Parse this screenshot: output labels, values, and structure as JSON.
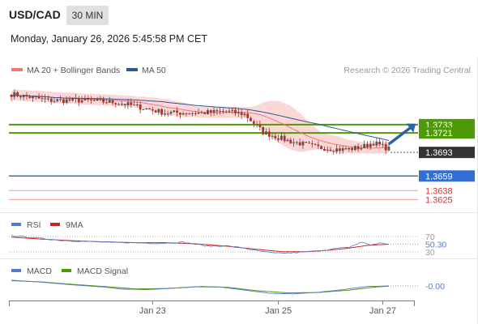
{
  "header": {
    "symbol": "USD/CAD",
    "timeframe": "30 MIN",
    "datetime": "Monday, January 26, 2026 5:45:58 PM CET"
  },
  "colors": {
    "candle_up": "#555555",
    "candle_down": "#b0302a",
    "ma20": "#f07878",
    "bollinger_fill": "#fbd3d3",
    "ma50": "#2c5896",
    "resistance": "#4e9a06",
    "support": "#2f6fd6",
    "support_light": "#f29a9a",
    "current_price": "#333333",
    "arrow": "#2a63aa",
    "rsi": "#5577cc",
    "rsi_ma": "#cc2222",
    "macd": "#5577cc",
    "macd_signal": "#4e9a06"
  },
  "chart_data": [
    {
      "type": "candlestick",
      "panel": "price",
      "legend": [
        {
          "label": "MA 20 + Bollinger Bands",
          "color": "#f07878"
        },
        {
          "label": "MA 50",
          "color": "#2c5896"
        }
      ],
      "watermark": "Research © 2026 Trading Central",
      "ylim": [
        1.3615,
        1.379
      ],
      "x_ticks": [
        {
          "label": "Jan 23",
          "index": 46
        },
        {
          "label": "Jan 25",
          "index": 87
        },
        {
          "label": "Jan 27",
          "index": 121
        }
      ],
      "price_path": [
        [
          0,
          1.3777
        ],
        [
          12,
          1.3768
        ],
        [
          24,
          1.3768
        ],
        [
          34,
          1.3765
        ],
        [
          40,
          1.376
        ],
        [
          50,
          1.375
        ],
        [
          62,
          1.375
        ],
        [
          70,
          1.3752
        ],
        [
          76,
          1.3748
        ],
        [
          82,
          1.3722
        ],
        [
          90,
          1.371
        ],
        [
          100,
          1.37
        ],
        [
          108,
          1.3697
        ],
        [
          114,
          1.37
        ],
        [
          118,
          1.3707
        ],
        [
          123,
          1.3698
        ]
      ],
      "levels": [
        {
          "value": 1.3733,
          "label": "1.3733",
          "style": "resistance_box"
        },
        {
          "value": 1.3721,
          "label": "1.3721",
          "style": "resistance_box"
        },
        {
          "value": 1.3693,
          "label": "1.3693",
          "style": "current_box"
        },
        {
          "value": 1.3659,
          "label": "1.3659",
          "style": "support_box"
        },
        {
          "value": 1.3638,
          "label": "1.3638",
          "style": "support_text"
        },
        {
          "value": 1.3625,
          "label": "1.3625",
          "style": "support_text"
        }
      ]
    },
    {
      "type": "line",
      "panel": "rsi",
      "legend": [
        {
          "label": "RSI",
          "color": "#5577cc"
        },
        {
          "label": "9MA",
          "color": "#cc2222"
        }
      ],
      "ylim": [
        20,
        80
      ],
      "ticks": [
        {
          "value": 70,
          "label": "70"
        },
        {
          "value": 30,
          "label": "30"
        }
      ],
      "last_value": "50.30",
      "rsi": [
        [
          0,
          72
        ],
        [
          8,
          66
        ],
        [
          16,
          60
        ],
        [
          24,
          57
        ],
        [
          32,
          55
        ],
        [
          40,
          54
        ],
        [
          48,
          52
        ],
        [
          56,
          55
        ],
        [
          64,
          45
        ],
        [
          70,
          46
        ],
        [
          76,
          40
        ],
        [
          80,
          33
        ],
        [
          86,
          27
        ],
        [
          92,
          28
        ],
        [
          100,
          33
        ],
        [
          106,
          39
        ],
        [
          110,
          42
        ],
        [
          114,
          55
        ],
        [
          117,
          48
        ],
        [
          120,
          53
        ],
        [
          123,
          50.3
        ]
      ],
      "rsi_ma": [
        [
          0,
          68
        ],
        [
          10,
          63
        ],
        [
          20,
          59
        ],
        [
          30,
          56
        ],
        [
          40,
          54
        ],
        [
          50,
          54
        ],
        [
          60,
          51
        ],
        [
          70,
          45
        ],
        [
          80,
          37
        ],
        [
          88,
          31
        ],
        [
          96,
          31
        ],
        [
          104,
          35
        ],
        [
          110,
          40
        ],
        [
          116,
          47
        ],
        [
          123,
          50
        ]
      ]
    },
    {
      "type": "line",
      "panel": "macd",
      "legend": [
        {
          "label": "MACD",
          "color": "#5577cc"
        },
        {
          "label": "MACD Signal",
          "color": "#4e9a06"
        }
      ],
      "ylim": [
        -1,
        1
      ],
      "last_value": "-0.00",
      "macd": [
        [
          0,
          0.55
        ],
        [
          10,
          0.35
        ],
        [
          20,
          0.1
        ],
        [
          30,
          -0.1
        ],
        [
          36,
          -0.3
        ],
        [
          44,
          -0.35
        ],
        [
          54,
          -0.2
        ],
        [
          62,
          -0.05
        ],
        [
          68,
          -0.1
        ],
        [
          76,
          -0.4
        ],
        [
          84,
          -0.7
        ],
        [
          92,
          -0.75
        ],
        [
          100,
          -0.6
        ],
        [
          108,
          -0.35
        ],
        [
          116,
          -0.05
        ],
        [
          123,
          0
        ]
      ],
      "macd_signal": [
        [
          0,
          0.5
        ],
        [
          10,
          0.38
        ],
        [
          20,
          0.15
        ],
        [
          30,
          -0.05
        ],
        [
          40,
          -0.28
        ],
        [
          50,
          -0.25
        ],
        [
          60,
          -0.08
        ],
        [
          70,
          -0.12
        ],
        [
          80,
          -0.45
        ],
        [
          90,
          -0.66
        ],
        [
          100,
          -0.62
        ],
        [
          110,
          -0.4
        ],
        [
          118,
          -0.12
        ],
        [
          123,
          -0.02
        ]
      ]
    }
  ]
}
